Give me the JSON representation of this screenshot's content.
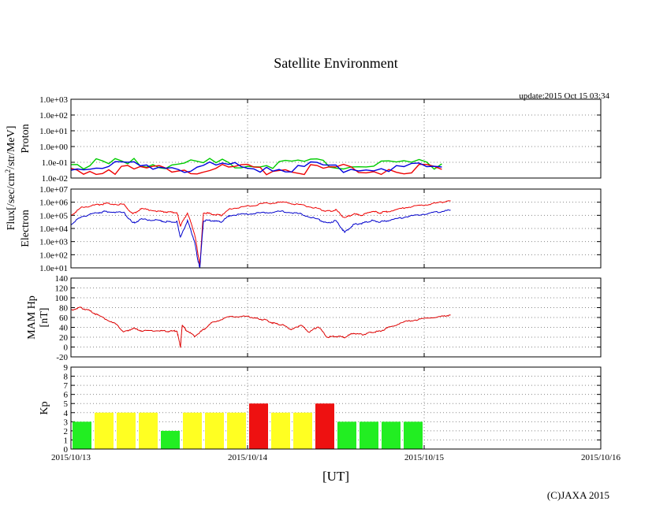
{
  "title": "Satellite Environment",
  "update": "update:2015 Oct 15 03:34",
  "copyright": "(C)JAXA 2015",
  "x_axis_label": "[UT]",
  "x_ticks": [
    "2015/10/13",
    "2015/10/14",
    "2015/10/15",
    "2015/10/16"
  ],
  "flux_label": "Flux[/sec/cm2/str/MeV]",
  "chart_data": [
    {
      "type": "line",
      "name": "proton",
      "panel_label": "Proton",
      "yscale": "log",
      "ylim": [
        -2,
        3
      ],
      "y_ticks": [
        "1.0e-02",
        "1.0e-01",
        "1.0e+00",
        "1.0e+01",
        "1.0e+02",
        "1.0e+03"
      ],
      "x_range_days": [
        0,
        3
      ],
      "grid": "dotted",
      "series": [
        {
          "name": "green",
          "color": "#00cc00",
          "x": [
            0,
            0.5,
            1.0,
            1.5,
            2.1
          ],
          "log_values": [
            -1.1,
            -1.1,
            -1.1,
            -1.1,
            -1.1
          ]
        },
        {
          "name": "red",
          "color": "#ee0000",
          "x": [
            0,
            0.5,
            1.0,
            1.5,
            2.1
          ],
          "log_values": [
            -1.45,
            -1.45,
            -1.45,
            -1.45,
            -1.45
          ]
        },
        {
          "name": "blue",
          "color": "#0000dd",
          "x": [
            0,
            0.5,
            1.0,
            1.5,
            2.1
          ],
          "log_values": [
            -1.3,
            -1.3,
            -1.3,
            -1.3,
            -1.3
          ]
        }
      ]
    },
    {
      "type": "line",
      "name": "electron",
      "panel_label": "Electron",
      "yscale": "log",
      "ylim": [
        1,
        7
      ],
      "y_ticks": [
        "1.0e+01",
        "1.0e+02",
        "1.0e+03",
        "1.0e+04",
        "1.0e+05",
        "1.0e+06",
        "1.0e+07"
      ],
      "x_range_days": [
        0,
        3
      ],
      "grid": "dotted",
      "series": [
        {
          "name": "red",
          "color": "#ee0000",
          "x": [
            0,
            0.06,
            0.15,
            0.2,
            0.3,
            0.35,
            0.4,
            0.5,
            0.55,
            0.6,
            0.62,
            0.66,
            0.7,
            0.72,
            0.73,
            0.75,
            0.8,
            0.85,
            0.9,
            1.0,
            1.1,
            1.2,
            1.3,
            1.4,
            1.45,
            1.5,
            1.55,
            1.6,
            1.65,
            1.7,
            1.75,
            1.8,
            1.9,
            2.0,
            2.1,
            2.15
          ],
          "log_values": [
            5.0,
            5.6,
            5.8,
            5.9,
            5.8,
            5.1,
            5.5,
            5.3,
            5.25,
            5.2,
            4.2,
            5.2,
            3.6,
            2.0,
            1.2,
            5.2,
            5.1,
            5.0,
            5.5,
            5.7,
            5.9,
            6.0,
            5.8,
            5.5,
            5.3,
            5.4,
            4.8,
            5.1,
            5.0,
            5.3,
            5.2,
            5.3,
            5.6,
            5.8,
            6.0,
            6.1
          ]
        },
        {
          "name": "blue",
          "color": "#0000cc",
          "x": [
            0,
            0.06,
            0.15,
            0.2,
            0.3,
            0.35,
            0.4,
            0.5,
            0.55,
            0.6,
            0.62,
            0.66,
            0.7,
            0.72,
            0.73,
            0.75,
            0.8,
            0.85,
            0.9,
            1.0,
            1.1,
            1.2,
            1.3,
            1.4,
            1.45,
            1.5,
            1.55,
            1.6,
            1.65,
            1.7,
            1.75,
            1.8,
            1.9,
            2.0,
            2.1,
            2.15
          ],
          "log_values": [
            4.3,
            4.9,
            5.2,
            5.3,
            5.2,
            4.4,
            4.7,
            4.6,
            4.5,
            4.5,
            3.3,
            4.6,
            3.0,
            1.5,
            1.0,
            4.6,
            4.6,
            4.5,
            5.0,
            5.1,
            5.2,
            5.3,
            5.1,
            4.7,
            4.4,
            4.6,
            3.7,
            4.3,
            4.4,
            4.6,
            4.5,
            4.6,
            4.9,
            5.1,
            5.3,
            5.4
          ]
        }
      ]
    },
    {
      "type": "line",
      "name": "mam_hp",
      "panel_label": "MAM Hp",
      "unit_label": "[nT]",
      "ylim": [
        -20,
        140
      ],
      "y_ticks": [
        "-20",
        "0",
        "20",
        "40",
        "60",
        "80",
        "100",
        "120",
        "140"
      ],
      "x_range_days": [
        0,
        3
      ],
      "grid": "dotted",
      "series": [
        {
          "name": "hp",
          "color": "#dd0000",
          "x": [
            0,
            0.05,
            0.1,
            0.15,
            0.25,
            0.3,
            0.35,
            0.4,
            0.5,
            0.55,
            0.6,
            0.62,
            0.63,
            0.65,
            0.7,
            0.75,
            0.8,
            0.9,
            1.0,
            1.05,
            1.1,
            1.15,
            1.2,
            1.25,
            1.3,
            1.35,
            1.4,
            1.45,
            1.5,
            1.55,
            1.6,
            1.65,
            1.7,
            1.75,
            1.8,
            1.9,
            2.0,
            2.1,
            2.15
          ],
          "values": [
            75,
            80,
            75,
            65,
            48,
            30,
            38,
            33,
            33,
            32,
            33,
            0,
            45,
            35,
            22,
            35,
            50,
            62,
            62,
            58,
            55,
            48,
            45,
            35,
            45,
            30,
            42,
            20,
            22,
            20,
            28,
            25,
            30,
            32,
            40,
            52,
            58,
            62,
            65
          ]
        }
      ]
    },
    {
      "type": "bar",
      "name": "kp",
      "panel_label": "Kp",
      "ylim": [
        0,
        9
      ],
      "y_ticks": [
        "0",
        "1",
        "2",
        "3",
        "4",
        "5",
        "6",
        "7",
        "8",
        "9"
      ],
      "x_range_days": [
        0,
        3
      ],
      "grid": "dotted",
      "bin_hours": 3,
      "values": [
        3,
        4,
        4,
        4,
        2,
        4,
        4,
        4,
        5,
        4,
        4,
        5,
        3,
        3,
        3,
        3
      ],
      "colors": {
        "low": "#22ee22",
        "mid": "#ffff22",
        "high": "#ee1111"
      }
    }
  ]
}
